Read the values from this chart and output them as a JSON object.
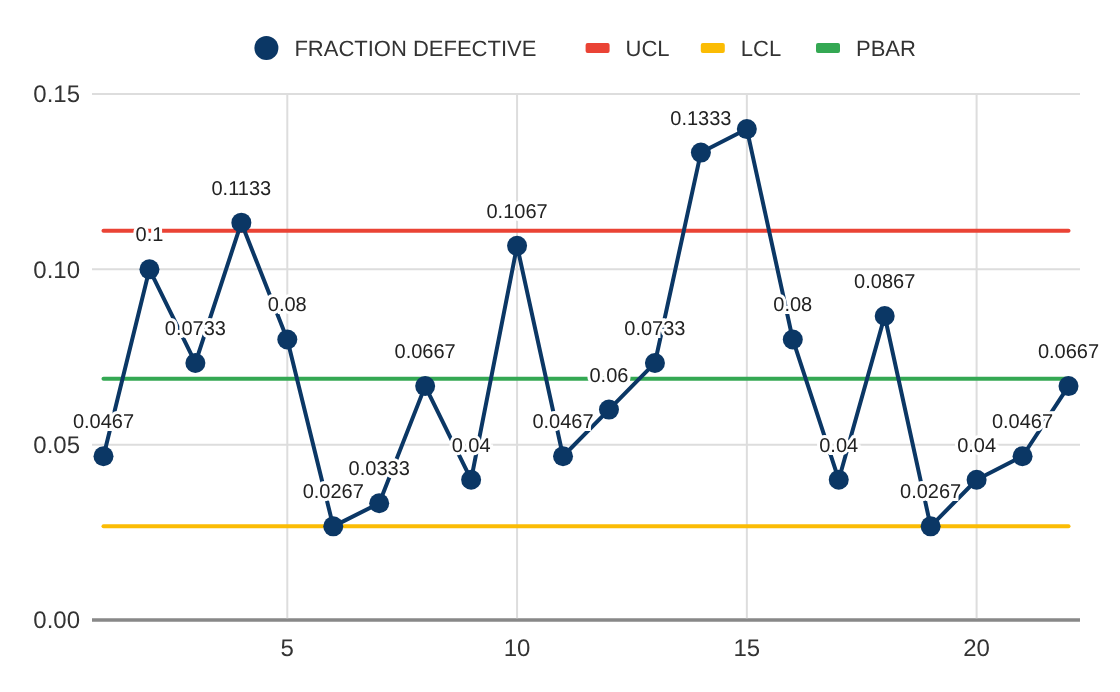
{
  "chart_data": {
    "type": "line",
    "x": [
      1,
      2,
      3,
      4,
      5,
      6,
      7,
      8,
      9,
      10,
      11,
      12,
      13,
      14,
      15,
      16,
      17,
      18,
      19,
      20,
      21,
      22
    ],
    "series": [
      {
        "name": "FRACTION DEFECTIVE",
        "color": "#0b3765",
        "marker": "circle",
        "values": [
          0.0467,
          0.1,
          0.0733,
          0.1133,
          0.08,
          0.0267,
          0.0333,
          0.0667,
          0.04,
          0.1067,
          0.0467,
          0.06,
          0.0733,
          0.1333,
          0.14,
          0.08,
          0.04,
          0.0867,
          0.0267,
          0.04,
          0.0467,
          0.0667
        ],
        "value_labels": [
          "0.0467",
          "0.1",
          "0.0733",
          "0.1133",
          "0.08",
          "0.0267",
          "0.0333",
          "0.0667",
          "0.04",
          "0.1067",
          "0.0467",
          "0.06",
          "0.0733",
          "0.1333",
          null,
          "0.08",
          "0.04",
          "0.0867",
          "0.0267",
          "0.04",
          "0.0467",
          "0.0667"
        ]
      },
      {
        "name": "UCL",
        "color": "#ea4335",
        "marker": "none",
        "values": [
          0.111,
          0.111,
          0.111,
          0.111,
          0.111,
          0.111,
          0.111,
          0.111,
          0.111,
          0.111,
          0.111,
          0.111,
          0.111,
          0.111,
          0.111,
          0.111,
          0.111,
          0.111,
          0.111,
          0.111,
          0.111,
          0.111
        ]
      },
      {
        "name": "LCL",
        "color": "#fbbc04",
        "marker": "none",
        "values": [
          0.0267,
          0.0267,
          0.0267,
          0.0267,
          0.0267,
          0.0267,
          0.0267,
          0.0267,
          0.0267,
          0.0267,
          0.0267,
          0.0267,
          0.0267,
          0.0267,
          0.0267,
          0.0267,
          0.0267,
          0.0267,
          0.0267,
          0.0267,
          0.0267,
          0.0267
        ]
      },
      {
        "name": "PBAR",
        "color": "#34a853",
        "marker": "none",
        "values": [
          0.0688,
          0.0688,
          0.0688,
          0.0688,
          0.0688,
          0.0688,
          0.0688,
          0.0688,
          0.0688,
          0.0688,
          0.0688,
          0.0688,
          0.0688,
          0.0688,
          0.0688,
          0.0688,
          0.0688,
          0.0688,
          0.0688,
          0.0688,
          0.0688,
          0.0688
        ]
      }
    ],
    "xlim": [
      0.75,
      22.25
    ],
    "xticks": [
      5,
      10,
      15,
      20
    ],
    "ylim": [
      0,
      0.15
    ],
    "yticks": [
      {
        "value": 0,
        "label": "0.00"
      },
      {
        "value": 0.05,
        "label": "0.05"
      },
      {
        "value": 0.1,
        "label": "0.10"
      },
      {
        "value": 0.15,
        "label": "0.15"
      }
    ],
    "grid": true,
    "legend": "top"
  }
}
